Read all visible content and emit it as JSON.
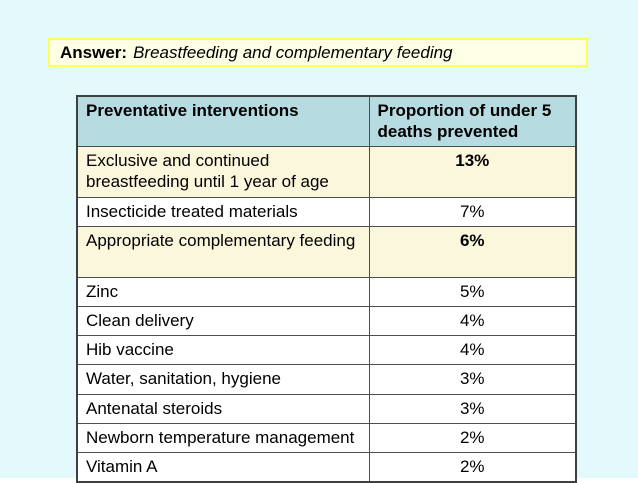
{
  "page": {
    "background": "#e4f9fb"
  },
  "answer_box": {
    "label": "Answer:",
    "text": "Breastfeeding and complementary feeding",
    "fill": "#ffffe6",
    "border_color": "#ffff5c"
  },
  "table": {
    "header": {
      "intervention": "Preventative interventions",
      "proportion": "Proportion of under 5 deaths prevented",
      "fill": "#b6dbe0"
    },
    "highlight_fill": "#faf7dd",
    "rows": [
      {
        "intervention": "Exclusive and continued breastfeeding until 1 year of age",
        "proportion": "13%",
        "highlight": true,
        "two_line": true
      },
      {
        "intervention": "Insecticide treated materials",
        "proportion": "7%",
        "highlight": false,
        "two_line": false
      },
      {
        "intervention": "Appropriate complementary feeding",
        "proportion": "6%",
        "highlight": true,
        "two_line": true
      },
      {
        "intervention": "Zinc",
        "proportion": "5%",
        "highlight": false,
        "two_line": false
      },
      {
        "intervention": "Clean delivery",
        "proportion": "4%",
        "highlight": false,
        "two_line": false
      },
      {
        "intervention": "Hib vaccine",
        "proportion": "4%",
        "highlight": false,
        "two_line": false
      },
      {
        "intervention": "Water, sanitation, hygiene",
        "proportion": "3%",
        "highlight": false,
        "two_line": false
      },
      {
        "intervention": "Antenatal steroids",
        "proportion": "3%",
        "highlight": false,
        "two_line": false
      },
      {
        "intervention": "Newborn temperature management",
        "proportion": "2%",
        "highlight": false,
        "two_line": false
      },
      {
        "intervention": "Vitamin A",
        "proportion": "2%",
        "highlight": false,
        "two_line": false
      }
    ]
  }
}
